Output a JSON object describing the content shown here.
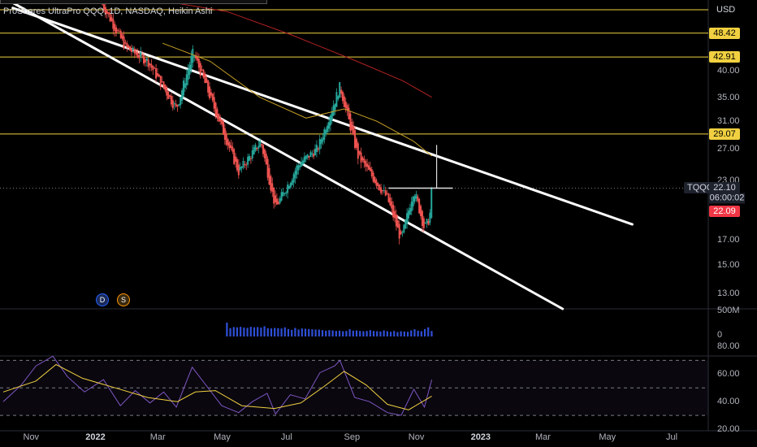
{
  "header": {
    "symbol_name": "ProShares UltraPro QQQ",
    "interval": "1D",
    "exchange": "NASDAQ",
    "chart_style": "Heikin Ashi"
  },
  "price_axis": {
    "currency": "USD",
    "ticks": [
      "40.00",
      "35.00",
      "31.00",
      "27.00",
      "23.00",
      "17.00",
      "15.00",
      "13.00"
    ],
    "tick_values": [
      40,
      35,
      31,
      27,
      23,
      17,
      15,
      13
    ],
    "levels": [
      {
        "label": "48.42",
        "value": 48.42,
        "color": "#f0d040"
      },
      {
        "label": "42.91",
        "value": 42.91,
        "color": "#f0d040"
      },
      {
        "label": "29.07",
        "value": 29.07,
        "color": "#f0d040"
      }
    ],
    "top_level_value": 54.5,
    "current_price_label": "22.10",
    "current_price_value": 22.1,
    "countdown": "06:00:02",
    "last_price_label": "22.09",
    "symbol": "TQQQ"
  },
  "volume_axis": {
    "ticks": [
      "500M",
      "0"
    ]
  },
  "rsi_axis": {
    "ticks": [
      "80.00",
      "60.00",
      "40.00",
      "20.00"
    ]
  },
  "time_axis": {
    "labels": [
      "Nov",
      "2022",
      "Mar",
      "May",
      "Jul",
      "Sep",
      "Nov",
      "2023",
      "Mar",
      "May",
      "Jul"
    ],
    "bold": [
      false,
      true,
      false,
      false,
      false,
      false,
      false,
      true,
      false,
      false,
      false
    ]
  },
  "badges": {
    "dividends": "D",
    "splits": "S"
  },
  "colors": {
    "up": "#26a69a",
    "down": "#ef5350",
    "level_line": "#f0d040",
    "ma_fast": "#c9a227",
    "ma_slow": "#b22222",
    "channel": "#ffffff",
    "volume": "#2f4fd8",
    "rsi": "#7e57c2",
    "rsi_ma": "#f0d040"
  },
  "chart_data": [
    {
      "type": "line",
      "title": "ProShares UltraPro QQQ, 1D, NASDAQ, Heikin Ashi",
      "y_scale": "log",
      "ylim": [
        12,
        54.5
      ],
      "x_range": [
        "2021-10-01",
        "2023-07-31"
      ],
      "series": [
        {
          "points": [
            [
              "2022-01-03",
              56
            ],
            [
              "2022-01-25",
              45
            ],
            [
              "2022-02-15",
              42
            ],
            [
              "2022-03-14",
              33
            ],
            [
              "2022-03-30",
              44
            ],
            [
              "2022-04-26",
              30
            ],
            [
              "2022-05-12",
              24
            ],
            [
              "2022-06-02",
              28
            ],
            [
              "2022-06-16",
              20
            ],
            [
              "2022-07-08",
              25
            ],
            [
              "2022-07-26",
              27
            ],
            [
              "2022-08-16",
              37
            ],
            [
              "2022-09-02",
              26
            ],
            [
              "2022-09-30",
              21
            ],
            [
              "2022-10-13",
              17
            ],
            [
              "2022-10-25",
              22
            ],
            [
              "2022-11-04",
              18
            ],
            [
              "2022-11-09",
              19
            ],
            [
              "2022-11-11",
              22.1
            ]
          ]
        },
        {
          "points": [
            [
              "2022-03-01",
              46
            ],
            [
              "2022-04-15",
              42
            ],
            [
              "2022-06-01",
              35
            ],
            [
              "2022-07-15",
              31.5
            ],
            [
              "2022-08-20",
              33
            ],
            [
              "2022-09-20",
              31
            ],
            [
              "2022-10-25",
              28
            ],
            [
              "2022-11-11",
              26
            ]
          ]
        },
        {
          "points": [
            [
              "2022-03-01",
              57
            ],
            [
              "2022-05-01",
              54
            ],
            [
              "2022-07-01",
              48
            ],
            [
              "2022-09-01",
              42
            ],
            [
              "2022-10-15",
              38
            ],
            [
              "2022-11-11",
              35
            ]
          ]
        }
      ],
      "channel_lines": [
        {
          "from": [
            "2021-10-10",
            55
          ],
          "to": [
            "2023-05-20",
            18.4
          ]
        },
        {
          "from": [
            "2021-10-01",
            58
          ],
          "to": [
            "2023-03-15",
            12
          ]
        }
      ],
      "horizontal_levels": [
        54.5,
        48.42,
        42.91,
        29.07,
        22.1
      ]
    },
    {
      "type": "bar",
      "ylim": [
        0,
        500
      ],
      "ylabel_unit": "M",
      "x_range": [
        "2022-05-01",
        "2022-11-11"
      ],
      "values": [
        250,
        150,
        170,
        165,
        175,
        160,
        155,
        175,
        165,
        170,
        160,
        185,
        150,
        145,
        155,
        150,
        145,
        165,
        135,
        120,
        155,
        125,
        145,
        140,
        135,
        130,
        125,
        125,
        115,
        105,
        115,
        110,
        100,
        105,
        95,
        100,
        130,
        105,
        110,
        100,
        95,
        100,
        115,
        100,
        95,
        90,
        110,
        95,
        85,
        100,
        80,
        95,
        90,
        85,
        110,
        130,
        105,
        95,
        135,
        165,
        100
      ]
    },
    {
      "type": "line",
      "ylim": [
        20,
        85
      ],
      "x_range": [
        "2021-10-01",
        "2022-11-11"
      ],
      "guide_levels": [
        70,
        50,
        30
      ],
      "series": [
        {
          "name": "RSI",
          "points": [
            [
              "2021-10-01",
              40
            ],
            [
              "2021-10-18",
              52
            ],
            [
              "2021-11-01",
              66
            ],
            [
              "2021-11-17",
              73
            ],
            [
              "2021-12-01",
              58
            ],
            [
              "2021-12-17",
              47
            ],
            [
              "2022-01-04",
              56
            ],
            [
              "2022-01-20",
              37
            ],
            [
              "2022-02-03",
              48
            ],
            [
              "2022-02-17",
              39
            ],
            [
              "2022-03-02",
              47
            ],
            [
              "2022-03-14",
              36
            ],
            [
              "2022-03-29",
              65
            ],
            [
              "2022-04-12",
              51
            ],
            [
              "2022-04-26",
              37
            ],
            [
              "2022-05-12",
              32
            ],
            [
              "2022-05-25",
              40
            ],
            [
              "2022-06-08",
              46
            ],
            [
              "2022-06-16",
              31
            ],
            [
              "2022-06-30",
              45
            ],
            [
              "2022-07-14",
              42
            ],
            [
              "2022-07-28",
              61
            ],
            [
              "2022-08-11",
              66
            ],
            [
              "2022-08-16",
              70
            ],
            [
              "2022-08-30",
              43
            ],
            [
              "2022-09-13",
              40
            ],
            [
              "2022-09-30",
              32
            ],
            [
              "2022-10-13",
              30
            ],
            [
              "2022-10-25",
              49
            ],
            [
              "2022-11-04",
              36
            ],
            [
              "2022-11-11",
              56
            ]
          ]
        },
        {
          "name": "RSI MA",
          "points": [
            [
              "2021-10-01",
              47
            ],
            [
              "2021-11-01",
              55
            ],
            [
              "2021-11-20",
              67
            ],
            [
              "2021-12-15",
              57
            ],
            [
              "2022-01-15",
              50
            ],
            [
              "2022-02-15",
              43
            ],
            [
              "2022-03-15",
              40
            ],
            [
              "2022-04-01",
              47
            ],
            [
              "2022-04-20",
              48
            ],
            [
              "2022-05-15",
              37
            ],
            [
              "2022-06-15",
              35
            ],
            [
              "2022-07-10",
              39
            ],
            [
              "2022-08-01",
              51
            ],
            [
              "2022-08-20",
              62
            ],
            [
              "2022-09-10",
              52
            ],
            [
              "2022-09-30",
              38
            ],
            [
              "2022-10-20",
              34
            ],
            [
              "2022-11-11",
              44
            ]
          ]
        }
      ]
    }
  ]
}
